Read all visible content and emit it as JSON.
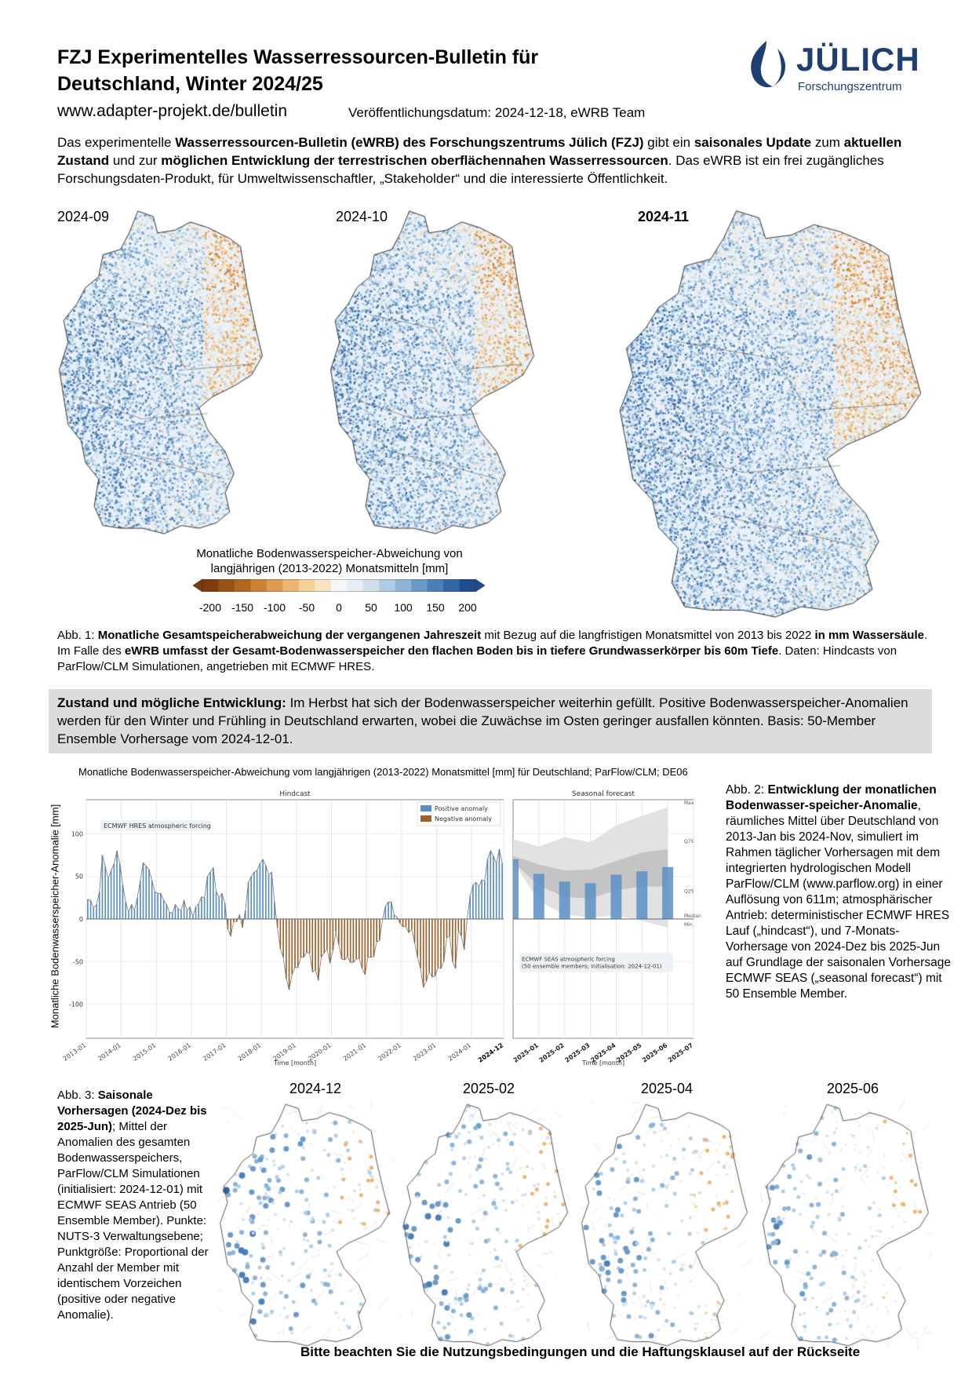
{
  "header": {
    "title_line1": "FZJ Experimentelles Wasserressourcen-Bulletin für",
    "title_line2": "Deutschland, Winter 2024/25",
    "url": "www.adapter-projekt.de/bulletin",
    "pubdate": "Veröffentlichungsdatum: 2024-12-18, eWRB Team",
    "logo": {
      "name": "JÜLICH",
      "sub": "Forschungszentrum",
      "color": "#1f3f73"
    }
  },
  "intro": [
    {
      "t": "Das experimentelle ",
      "b": false
    },
    {
      "t": "Wasserressourcen-Bulletin (eWRB) des Forschungszentrums Jülich (FZJ)",
      "b": true
    },
    {
      "t": " gibt ein ",
      "b": false
    },
    {
      "t": "saisonales Update",
      "b": true
    },
    {
      "t": " zum ",
      "b": false
    },
    {
      "t": "aktuellen Zustand",
      "b": true
    },
    {
      "t": " und zur ",
      "b": false
    },
    {
      "t": "möglichen Entwicklung der terrestrischen oberflächennahen Wasserressourcen",
      "b": true
    },
    {
      "t": ". Das eWRB ist ein frei zugängliches Forschungsdaten-Produkt, für Umweltwissenschaftler, „Stakeholder“ und die interessierte Öffentlichkeit.",
      "b": false
    }
  ],
  "hindcast_maps": {
    "labels": [
      "2024-09",
      "2024-10",
      "2024-11"
    ],
    "colorbar_title": "Monatliche Bodenwasserspeicher-Abweichung von langjährigen (2013-2022) Monatsmitteln [mm]",
    "colorbar_ticks": [
      "-200",
      "-150",
      "-100",
      "-50",
      "0",
      "50",
      "100",
      "150",
      "200"
    ],
    "colorbar_colors": [
      "#7f3b08",
      "#995213",
      "#b3661e",
      "#cc8133",
      "#df9a4d",
      "#ecb672",
      "#f4cf98",
      "#f8e4c4",
      "#f7f7f7",
      "#e5eef5",
      "#cfe0ec",
      "#b1cde3",
      "#8db4d6",
      "#6a9bc8",
      "#4a7fb9",
      "#3166a6",
      "#1f4c8f"
    ],
    "brown": "#b0651f",
    "blue": "#2f5f9f"
  },
  "abb1": [
    {
      "t": "Abb. 1: ",
      "b": false
    },
    {
      "t": "Monatliche Gesamtspeicherabweichung der vergangenen Jahreszeit",
      "b": true
    },
    {
      "t": " mit Bezug auf die langfristigen Monatsmittel von 2013 bis 2022 ",
      "b": false
    },
    {
      "t": "in mm Wassersäule",
      "b": true
    },
    {
      "t": ". Im Falle des ",
      "b": false
    },
    {
      "t": "eWRB umfasst der Gesamt-Bodenwasserspeicher den flachen Boden bis in tiefere Grundwasserkörper bis 60m Tiefe",
      "b": true
    },
    {
      "t": ". Daten: Hindcasts von ParFlow/CLM Simulationen, angetrieben mit ECMWF HRES.",
      "b": false
    }
  ],
  "status": [
    {
      "t": "Zustand und mögliche Entwicklung:",
      "b": true
    },
    {
      "t": " Im Herbst hat sich der Bodenwasserspeicher weiterhin gefüllt. Positive Bodenwasserspeicher-Anomalien werden für den Winter und Frühling in Deutschland erwarten, wobei die Zuwächse im Osten geringer ausfallen könnten. Basis: 50-Member Ensemble Vorhersage vom 2024-12-01.",
      "b": false
    }
  ],
  "chart_data": {
    "type": "bar",
    "title": "Monatliche Bodenwasserspeicher-Abweichung vom langjährigen (2013-2022) Monatsmittel [mm] für Deutschland; ParFlow/CLM; DE06",
    "ylabel": "Monatliche Bodenwasserspeicher-Anomalie  [mm]",
    "ylim": [
      -140,
      140
    ],
    "yticks": [
      -100,
      -50,
      0,
      50,
      100
    ],
    "grid": true,
    "colors": {
      "positive": "#5b8fc4",
      "negative": "#a0622a",
      "band_outer": "#e2e2e2",
      "band_inner": "#bdbdbd"
    },
    "hindcast": {
      "panel_title": "Hindcast",
      "xlabel": "Time [month]",
      "annotation": "ECMWF HRES atmospheric forcing",
      "legend": [
        "Positive anomaly",
        "Negative anomaly"
      ],
      "legend_position": "top-right",
      "start_month": "2013-01",
      "end_month": "2024-11",
      "xticks": [
        "2013-01",
        "2014-01",
        "2015-01",
        "2016-01",
        "2017-01",
        "2018-01",
        "2019-01",
        "2020-01",
        "2021-01",
        "2022-01",
        "2023-01",
        "2024-01",
        "2024-12"
      ],
      "values": [
        23,
        22,
        13,
        17,
        32,
        75,
        62,
        47,
        57,
        65,
        80,
        65,
        40,
        20,
        8,
        17,
        10,
        25,
        45,
        66,
        62,
        58,
        45,
        32,
        30,
        30,
        22,
        17,
        8,
        7,
        17,
        12,
        10,
        22,
        10,
        14,
        3,
        14,
        18,
        26,
        25,
        50,
        55,
        60,
        32,
        25,
        30,
        18,
        -12,
        -20,
        -3,
        -3,
        5,
        -10,
        10,
        43,
        50,
        55,
        57,
        65,
        70,
        63,
        52,
        55,
        20,
        -10,
        -35,
        -45,
        -70,
        -83,
        -65,
        -57,
        -57,
        -45,
        -45,
        -39,
        -40,
        -62,
        -60,
        -72,
        -45,
        -40,
        -35,
        -52,
        -37,
        -15,
        -30,
        -47,
        -48,
        -44,
        -51,
        -51,
        -47,
        -46,
        -58,
        -65,
        -45,
        -45,
        -44,
        -27,
        -25,
        0,
        15,
        20,
        20,
        5,
        2,
        -5,
        -9,
        -9,
        -16,
        -12,
        -28,
        -45,
        -58,
        -80,
        -73,
        -62,
        -68,
        -67,
        -57,
        -58,
        -50,
        -22,
        -20,
        -50,
        -58,
        -13,
        -20,
        -36,
        0,
        27,
        40,
        43,
        38,
        46,
        45,
        70,
        80,
        74,
        65,
        82,
        66
      ]
    },
    "forecast": {
      "panel_title": "Seasonal forecast",
      "xlabel": "Time [month]",
      "annotation_line1": "ECMWF SEAS atmospheric forcing",
      "annotation_line2": "(50 ensemble members; initialisation: 2024-12-01)",
      "months": [
        "2024-12",
        "2025-01",
        "2025-02",
        "2025-03",
        "2025-04",
        "2025-05",
        "2025-06"
      ],
      "xticks": [
        "2025-01",
        "2025-02",
        "2025-03",
        "2025-04",
        "2025-05",
        "2025-06",
        "2025-07"
      ],
      "median": [
        70,
        53,
        44,
        42,
        52,
        56,
        61
      ],
      "max": [
        94,
        85,
        96,
        90,
        110,
        121,
        131
      ],
      "q75": [
        74,
        64,
        57,
        58,
        68,
        78,
        82
      ],
      "q25": [
        67,
        39,
        26,
        24,
        34,
        38,
        38
      ],
      "min": [
        67,
        21,
        5,
        2,
        4,
        -2,
        -10
      ],
      "band_labels": [
        "Max",
        "Q75",
        "Q25",
        "Median",
        "Min"
      ]
    }
  },
  "abb2": [
    {
      "t": "Abb. 2: ",
      "b": false
    },
    {
      "t": "Entwicklung der monatlichen Bodenwasser-speicher-Anomalie",
      "b": true
    },
    {
      "t": ", räumliches Mittel über Deutschland von 2013-Jan bis 2024-Nov, simuliert im Rahmen täglicher Vorhersagen mit dem integrierten hydrologischen Modell ParFlow/CLM (www.parflow.org) in einer Auflösung von 611m; atmosphärischer Antrieb: deterministischer ECMWF HRES Lauf („hindcast“), und 7-Monats-Vorhersage von 2024-Dez bis 2025-Jun auf Grundlage der saisonalen Vorhersage ECMWF SEAS („seasonal forecast“) mit 50 Ensemble Member.",
      "b": false
    }
  ],
  "forecast_maps": {
    "labels": [
      "2024-12",
      "2025-02",
      "2025-04",
      "2025-06"
    ]
  },
  "abb3": [
    {
      "t": "Abb. 3: ",
      "b": false
    },
    {
      "t": "Saisonale Vorhersagen (2024-Dez bis 2025-Jun)",
      "b": true
    },
    {
      "t": "; Mittel der Anomalien des gesamten Bodenwasserspeichers, ParFlow/CLM Simulationen (initialisiert: 2024-12-01) mit ECMWF SEAS Antrieb (50 Ensemble Member). Punkte: NUTS-3 Verwaltungsebene; Punktgröße: Proportional der Anzahl der Member mit identischem Vorzeichen (positive oder negative Anomalie).",
      "b": false
    }
  ],
  "footnote": "Bitte beachten Sie die Nutzungsbedingungen und die Haftungsklausel auf der Rückseite"
}
